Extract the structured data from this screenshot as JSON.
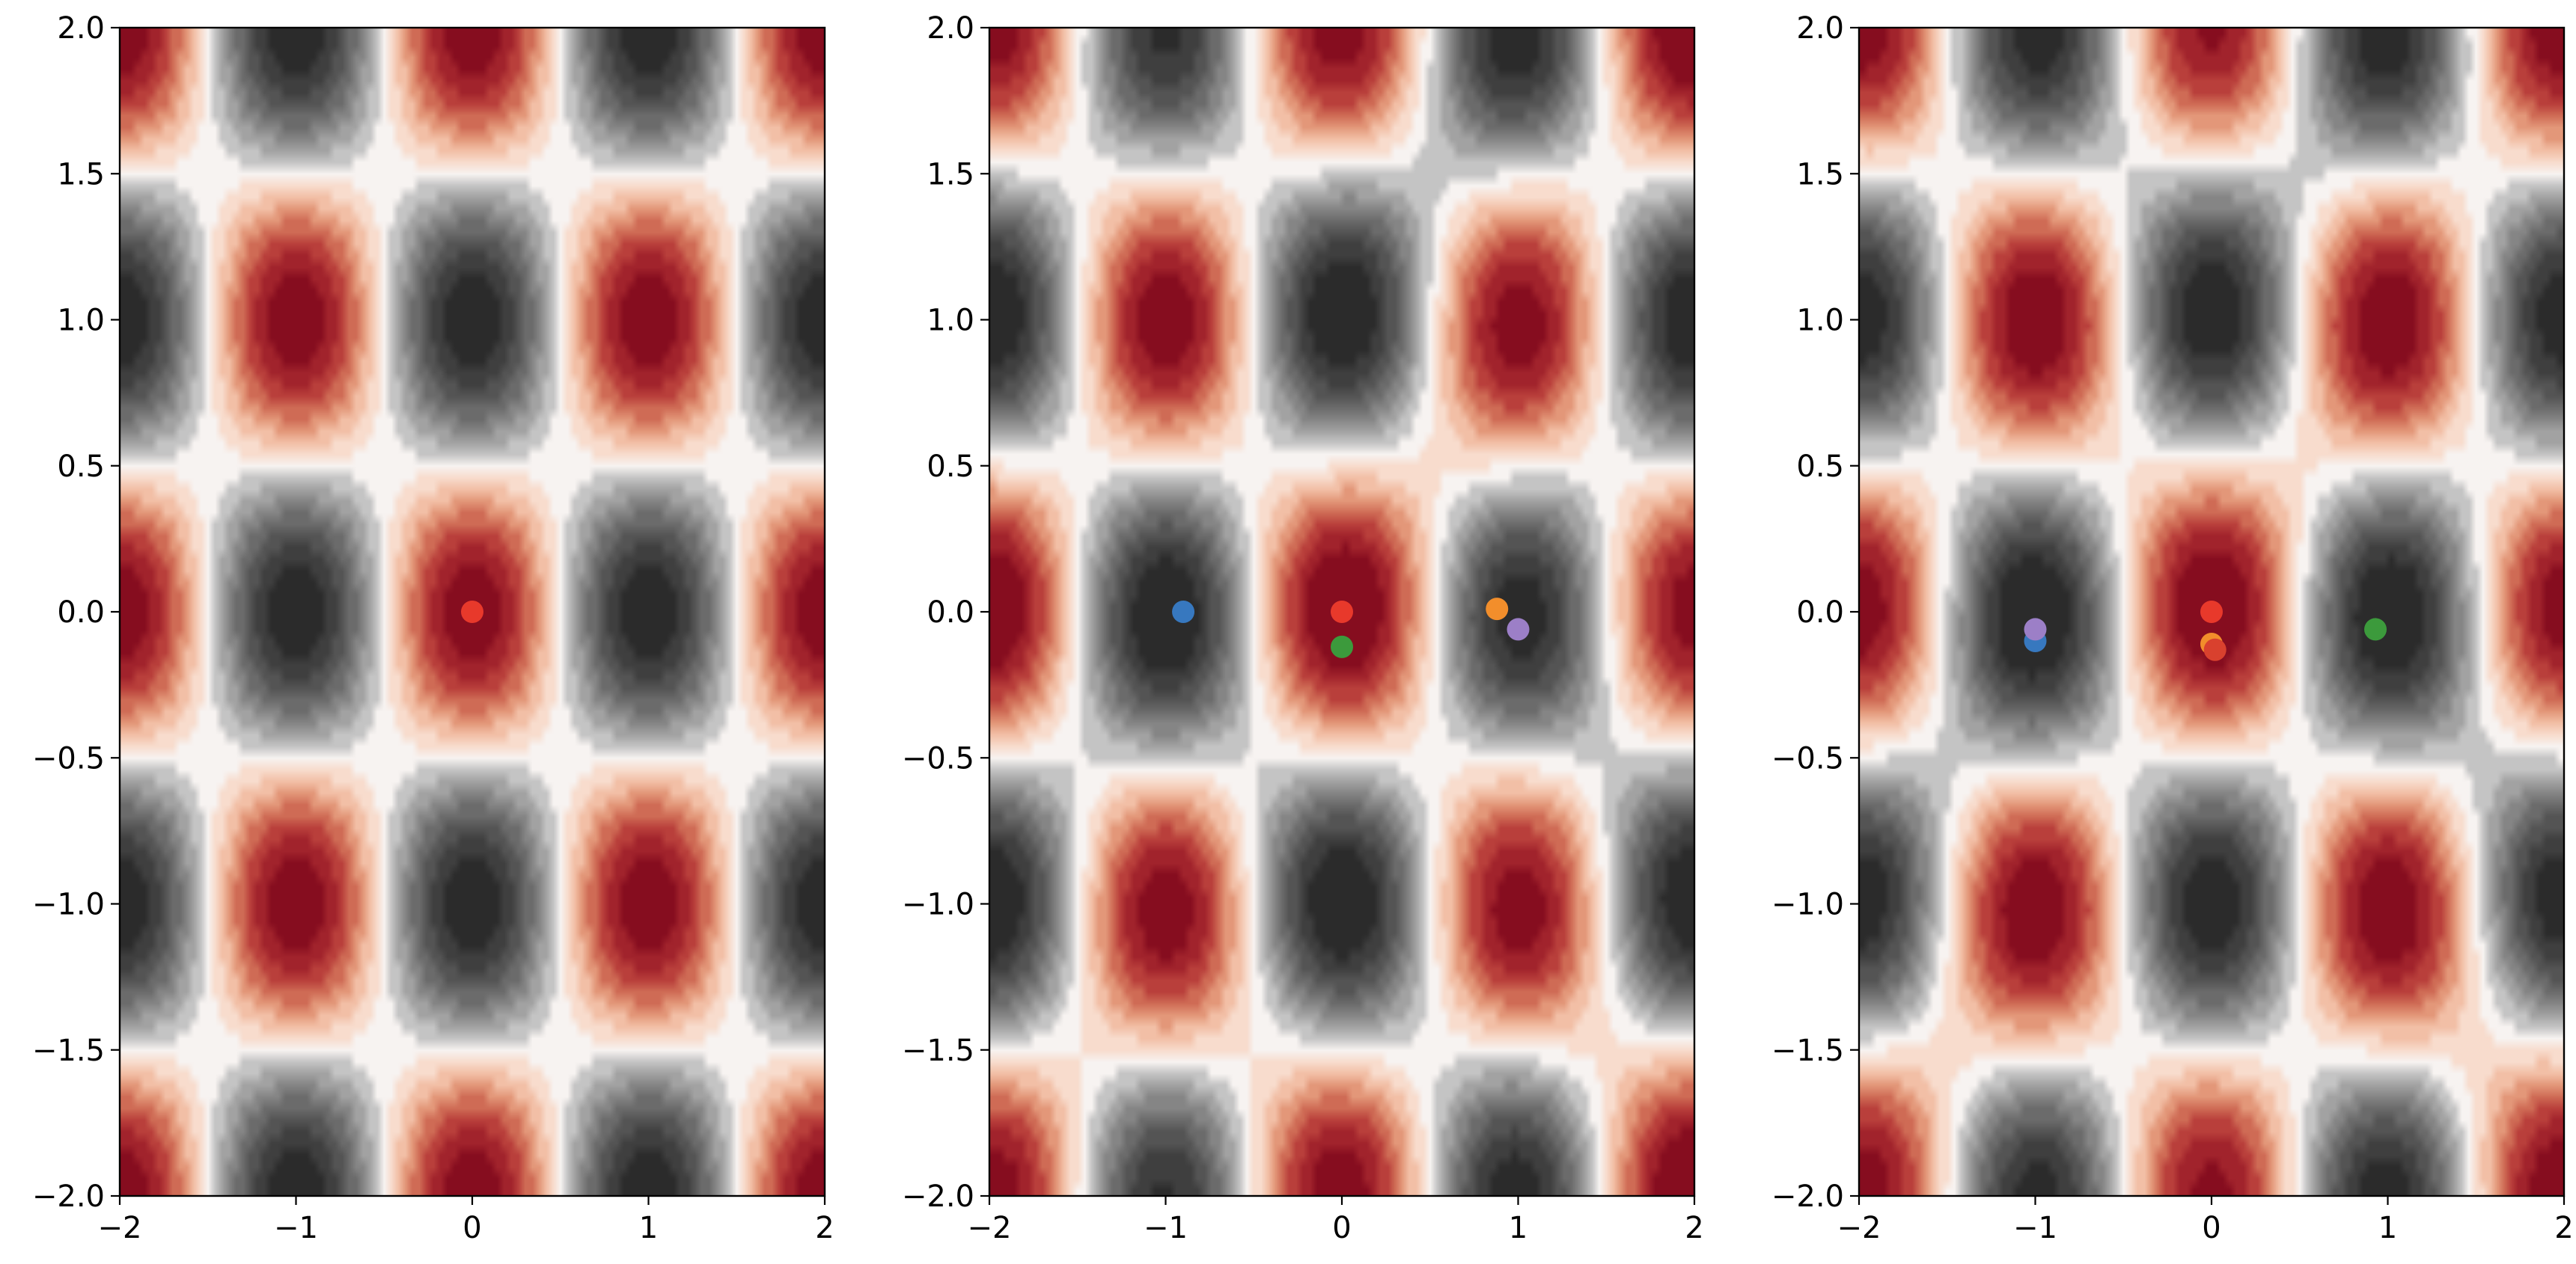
{
  "chart_data": [
    {
      "type": "heatmap",
      "title": "",
      "xlabel": "",
      "ylabel": "",
      "xlim": [
        -2,
        2
      ],
      "ylim": [
        -2,
        2
      ],
      "x_ticks": [
        "−2",
        "−1",
        "0",
        "1",
        "2"
      ],
      "y_ticks": [
        "−2.0",
        "−1.5",
        "−1.0",
        "−0.5",
        "0.0",
        "0.5",
        "1.0",
        "1.5",
        "2.0"
      ],
      "surface": "contour-filled, red maxima at integer (x,y), dark gray minima at half-integer (x,y)",
      "colormap": "RdGy",
      "grid": false,
      "points": [
        {
          "x": 0.0,
          "y": 0.0,
          "color": "#e8392b"
        }
      ]
    },
    {
      "type": "heatmap",
      "title": "",
      "xlabel": "",
      "ylabel": "",
      "xlim": [
        -2,
        2
      ],
      "ylim": [
        -2,
        2
      ],
      "x_ticks": [
        "−2",
        "−1",
        "0",
        "1",
        "2"
      ],
      "y_ticks": [
        "−2.0",
        "−1.5",
        "−1.0",
        "−0.5",
        "0.0",
        "0.5",
        "1.0",
        "1.5",
        "2.0"
      ],
      "surface": "contour-filled, distorted version of panel 1",
      "colormap": "RdGy",
      "grid": false,
      "points": [
        {
          "x": -0.9,
          "y": 0.0,
          "color": "#3778bf"
        },
        {
          "x": 0.0,
          "y": 0.0,
          "color": "#e8392b"
        },
        {
          "x": 0.0,
          "y": -0.12,
          "color": "#3c9a3c"
        },
        {
          "x": 0.88,
          "y": 0.01,
          "color": "#f28e2b"
        },
        {
          "x": 1.0,
          "y": -0.06,
          "color": "#9c7fc7"
        }
      ]
    },
    {
      "type": "heatmap",
      "title": "",
      "xlabel": "",
      "ylabel": "",
      "xlim": [
        -2,
        2
      ],
      "ylim": [
        -2,
        2
      ],
      "x_ticks": [
        "−2",
        "−1",
        "0",
        "1",
        "2"
      ],
      "y_ticks": [
        "−2.0",
        "−1.5",
        "−1.0",
        "−0.5",
        "0.0",
        "0.5",
        "1.0",
        "1.5",
        "2.0"
      ],
      "surface": "contour-filled, distorted version of panel 1",
      "colormap": "RdGy",
      "grid": false,
      "points": [
        {
          "x": -1.0,
          "y": -0.1,
          "color": "#3778bf"
        },
        {
          "x": -1.0,
          "y": -0.06,
          "color": "#9c7fc7"
        },
        {
          "x": 0.0,
          "y": 0.0,
          "color": "#e8392b"
        },
        {
          "x": 0.0,
          "y": -0.11,
          "color": "#f28e2b"
        },
        {
          "x": 0.02,
          "y": -0.13,
          "color": "#d9412e"
        },
        {
          "x": 0.93,
          "y": -0.06,
          "color": "#3c9a3c"
        }
      ]
    }
  ]
}
